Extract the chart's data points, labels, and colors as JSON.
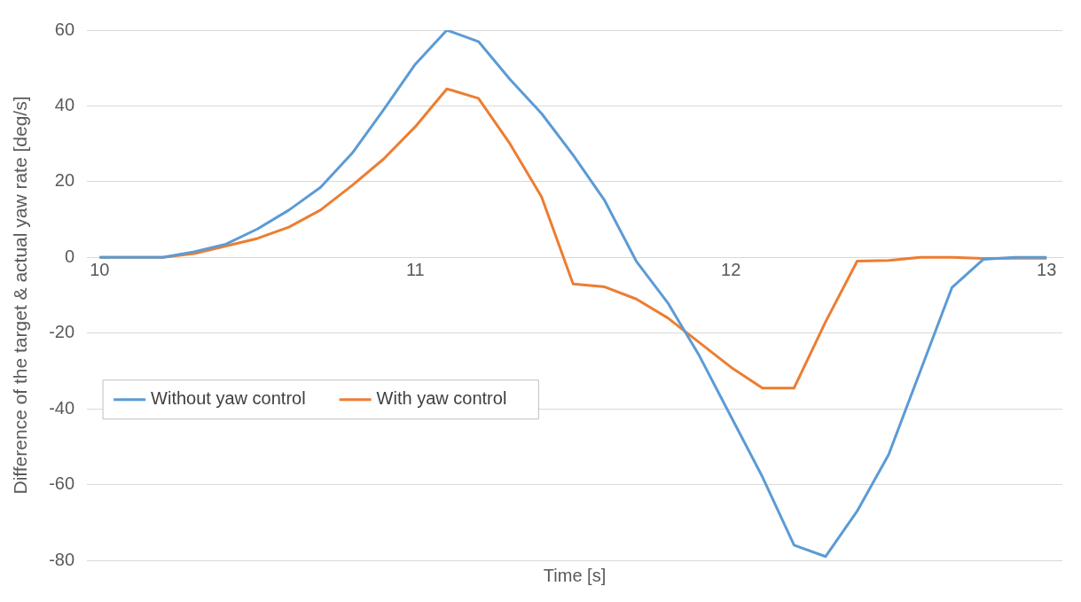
{
  "chart_data": {
    "type": "line",
    "xlabel": "Time [s]",
    "ylabel": "Difference of the target & actual yaw rate [deg/s]",
    "x": [
      10,
      10.1,
      10.2,
      10.3,
      10.4,
      10.5,
      10.6,
      10.7,
      10.8,
      10.9,
      11,
      11.1,
      11.2,
      11.3,
      11.4,
      11.5,
      11.6,
      11.7,
      11.8,
      11.9,
      12,
      12.1,
      12.2,
      12.3,
      12.4,
      12.5,
      12.6,
      12.7,
      12.8,
      12.9,
      13
    ],
    "series": [
      {
        "name": "Without yaw control",
        "color": "#5b9bd5",
        "values": [
          0,
          0,
          0,
          1.5,
          3.5,
          7.5,
          12.5,
          18.5,
          27.5,
          39,
          51,
          60,
          57,
          47,
          38,
          27,
          15,
          -1,
          -12,
          -26,
          -42,
          -58,
          -76,
          -79,
          -67,
          -52,
          -30,
          -8,
          -0.5,
          0,
          0
        ]
      },
      {
        "name": "With yaw control",
        "color": "#ed7d31",
        "values": [
          0,
          0,
          0,
          1,
          3,
          5,
          8,
          12.5,
          19,
          26,
          34.5,
          44.5,
          42,
          30,
          16,
          -7,
          -7.8,
          -11,
          -16,
          -22.5,
          -29,
          -34.5,
          -34.5,
          -17,
          -1,
          -0.8,
          0,
          0,
          -0.3,
          -0.2,
          -0.2
        ]
      }
    ],
    "xlim": [
      9.96,
      13.05
    ],
    "xticks": [
      10,
      11,
      12,
      13
    ],
    "ylim": [
      -80,
      60
    ],
    "yticks": [
      -80,
      -60,
      -40,
      -20,
      0,
      20,
      40,
      60
    ],
    "grid": "y",
    "legend": "bottom left",
    "marker": "none",
    "line_style": "solid"
  }
}
